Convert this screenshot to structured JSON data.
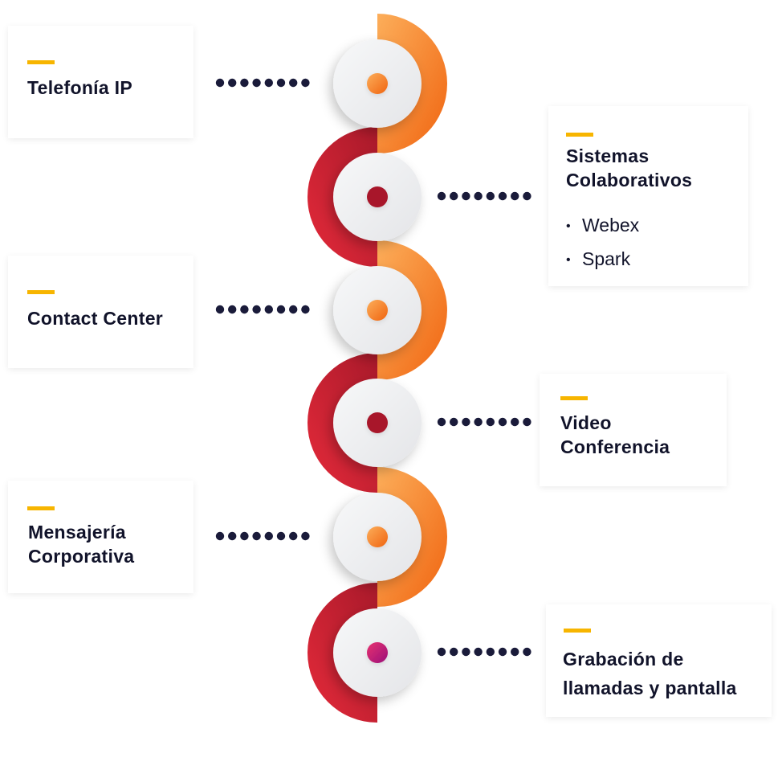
{
  "items": [
    {
      "title": "Telefonía IP"
    },
    {
      "title": "Sistemas Colaborativos",
      "bullets": [
        "Webex",
        "Spark"
      ]
    },
    {
      "title": "Contact Center"
    },
    {
      "title": "Video Conferencia"
    },
    {
      "title": "Mensajería Corporativa"
    },
    {
      "title": "Grabación de llamadas y pantalla"
    }
  ],
  "colors": {
    "accent": "#f7b500",
    "orange_light": "#fba04a",
    "orange_dark": "#f26a12",
    "red_light": "#e02a3b",
    "red_dark": "#a8192a",
    "dots": "#1a1b3a",
    "disc": "#eeeff1",
    "text": "#11132a"
  }
}
